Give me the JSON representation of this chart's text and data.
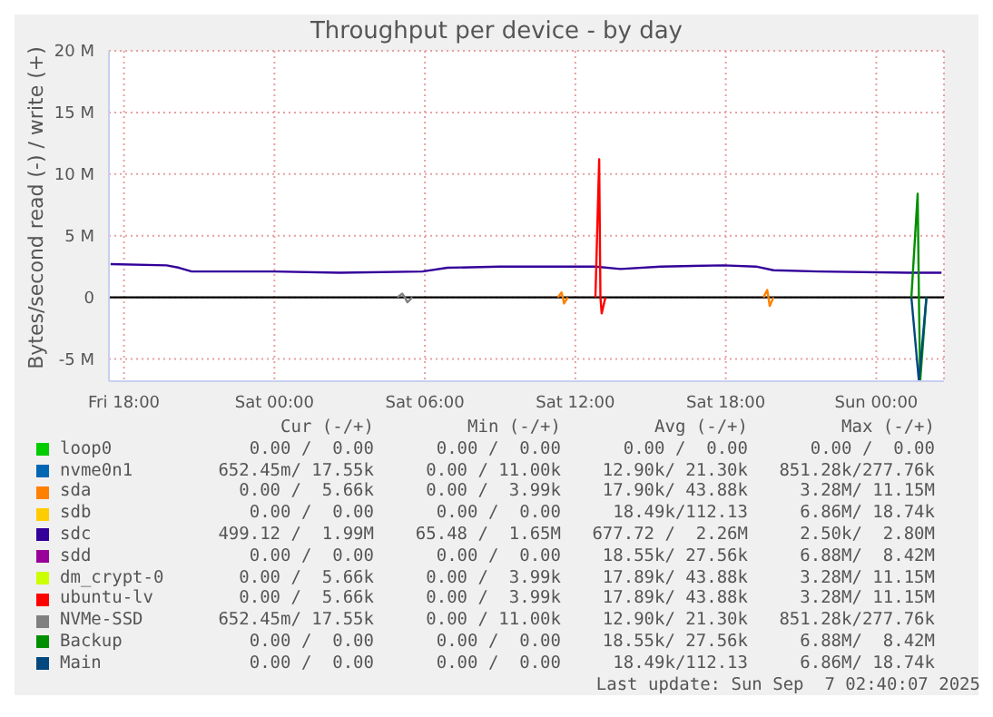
{
  "chart_data": {
    "type": "line",
    "title": "Throughput per device - by day",
    "ylabel": "Bytes/second read (-) / write (+)",
    "xlim": [
      "2025-09-05T17:24",
      "2025-09-07T02:42"
    ],
    "xticks": [
      {
        "value": "2025-09-05T18:00",
        "label": "Fri 18:00"
      },
      {
        "value": "2025-09-06T00:00",
        "label": "Sat 00:00"
      },
      {
        "value": "2025-09-06T06:00",
        "label": "Sat 06:00"
      },
      {
        "value": "2025-09-06T12:00",
        "label": "Sat 12:00"
      },
      {
        "value": "2025-09-06T18:00",
        "label": "Sat 18:00"
      },
      {
        "value": "2025-09-07T00:00",
        "label": "Sun 00:00"
      }
    ],
    "ylim": [
      -6.8,
      20
    ],
    "yticks": [
      {
        "value": -5,
        "label": "-5 M"
      },
      {
        "value": 0,
        "label": "0"
      },
      {
        "value": 5,
        "label": "5 M"
      },
      {
        "value": 10,
        "label": "10 M"
      },
      {
        "value": 15,
        "label": "15 M"
      },
      {
        "value": 20,
        "label": "20 M"
      }
    ],
    "grid": true,
    "legend": "bottom",
    "marker": "none",
    "line_style": "solid",
    "ref_lines": [
      {
        "axis": "y",
        "value": 0,
        "color": "#000000"
      }
    ],
    "series": [
      {
        "name": "loop0",
        "color": "#00cc00"
      },
      {
        "name": "nvme0n1",
        "color": "#0066b3"
      },
      {
        "name": "sda",
        "color": "#ff8000",
        "x": [
          "2025-09-06T11:18",
          "2025-09-06T11:27",
          "2025-09-06T11:30",
          "2025-09-06T11:33",
          "2025-09-06T11:42",
          "2025-09-06T15:00",
          "2025-09-06T19:30",
          "2025-09-06T19:39",
          "2025-09-06T19:42",
          "2025-09-06T19:45",
          "2025-09-06T19:54"
        ],
        "values": [
          0,
          0.4,
          0,
          -0.5,
          0,
          null,
          0,
          0.6,
          0,
          -0.7,
          0
        ]
      },
      {
        "name": "sdb",
        "color": "#ffcc00"
      },
      {
        "name": "sdc",
        "color": "#330099",
        "x": [
          "2025-09-05T17:28",
          "2025-09-05T19:42",
          "2025-09-05T20:12",
          "2025-09-05T20:42",
          "2025-09-06T00:00",
          "2025-09-06T02:36",
          "2025-09-06T05:54",
          "2025-09-06T06:54",
          "2025-09-06T09:00",
          "2025-09-06T11:30",
          "2025-09-06T12:48",
          "2025-09-06T13:48",
          "2025-09-06T15:24",
          "2025-09-06T17:54",
          "2025-09-06T19:12",
          "2025-09-06T19:54",
          "2025-09-06T21:42",
          "2025-09-07T01:18",
          "2025-09-07T02:36"
        ],
        "values": [
          2.7,
          2.6,
          2.4,
          2.1,
          2.1,
          2.0,
          2.1,
          2.4,
          2.5,
          2.5,
          2.5,
          2.3,
          2.5,
          2.6,
          2.5,
          2.2,
          2.1,
          2.0,
          2.0
        ]
      },
      {
        "name": "sdd",
        "color": "#990099"
      },
      {
        "name": "dm_crypt-0",
        "color": "#ccff00"
      },
      {
        "name": "ubuntu-lv",
        "color": "#ff0000",
        "x": [
          "2025-09-06T12:48",
          "2025-09-06T12:57",
          "2025-09-06T13:00",
          "2025-09-06T13:03",
          "2025-09-06T13:12"
        ],
        "values": [
          0,
          11.2,
          0,
          -1.3,
          0
        ]
      },
      {
        "name": "NVMe-SSD",
        "color": "#808080",
        "x": [
          "2025-09-06T04:54",
          "2025-09-06T05:06",
          "2025-09-06T05:12",
          "2025-09-06T05:18",
          "2025-09-06T05:30"
        ],
        "values": [
          0,
          0.3,
          0,
          -0.4,
          0
        ]
      },
      {
        "name": "Backup",
        "color": "#008f00",
        "x": [
          "2025-09-07T01:24",
          "2025-09-07T01:39",
          "2025-09-07T01:42",
          "2025-09-07T01:45",
          "2025-09-07T02:00"
        ],
        "values": [
          0,
          8.4,
          0,
          -6.8,
          0
        ]
      },
      {
        "name": "Main",
        "color": "#00487d",
        "x": [
          "2025-09-07T01:24",
          "2025-09-07T01:42",
          "2025-09-07T02:00"
        ],
        "values": [
          0,
          -6.8,
          0
        ]
      }
    ],
    "annotations": [
      "Cur (-/+)",
      "Min (-/+)",
      "Avg (-/+)",
      "Max (-/+)",
      "0.00 /  0.00",
      "0.00 /  0.00",
      "0.00 /  0.00",
      "0.00 /  0.00",
      "652.45m/ 17.55k",
      "0.00 / 11.00k",
      "12.90k/ 21.30k",
      "851.28k/277.76k",
      "0.00 /  5.66k",
      "0.00 /  3.99k",
      "17.90k/ 43.88k",
      "3.28M/ 11.15M",
      "0.00 /  0.00",
      "0.00 /  0.00",
      "18.49k/112.13",
      "6.86M/ 18.74k",
      "499.12 /  1.99M",
      "65.48 /  1.65M",
      "677.72 /  2.26M",
      "2.50k/  2.80M",
      "0.00 /  0.00",
      "0.00 /  0.00",
      "18.55k/ 27.56k",
      "6.88M/  8.42M",
      "0.00 /  5.66k",
      "0.00 /  3.99k",
      "17.89k/ 43.88k",
      "3.28M/ 11.15M",
      "0.00 /  5.66k",
      "0.00 /  3.99k",
      "17.89k/ 43.88k",
      "3.28M/ 11.15M",
      "652.45m/ 17.55k",
      "0.00 / 11.00k",
      "12.90k/ 21.30k",
      "851.28k/277.76k",
      "0.00 /  0.00",
      "0.00 /  0.00",
      "18.55k/ 27.56k",
      "6.88M/  8.42M",
      "0.00 /  0.00",
      "0.00 /  0.00",
      "18.49k/112.13",
      "6.86M/ 18.74k",
      "Last update: Sun Sep  7 02:40:07 2025"
    ]
  }
}
